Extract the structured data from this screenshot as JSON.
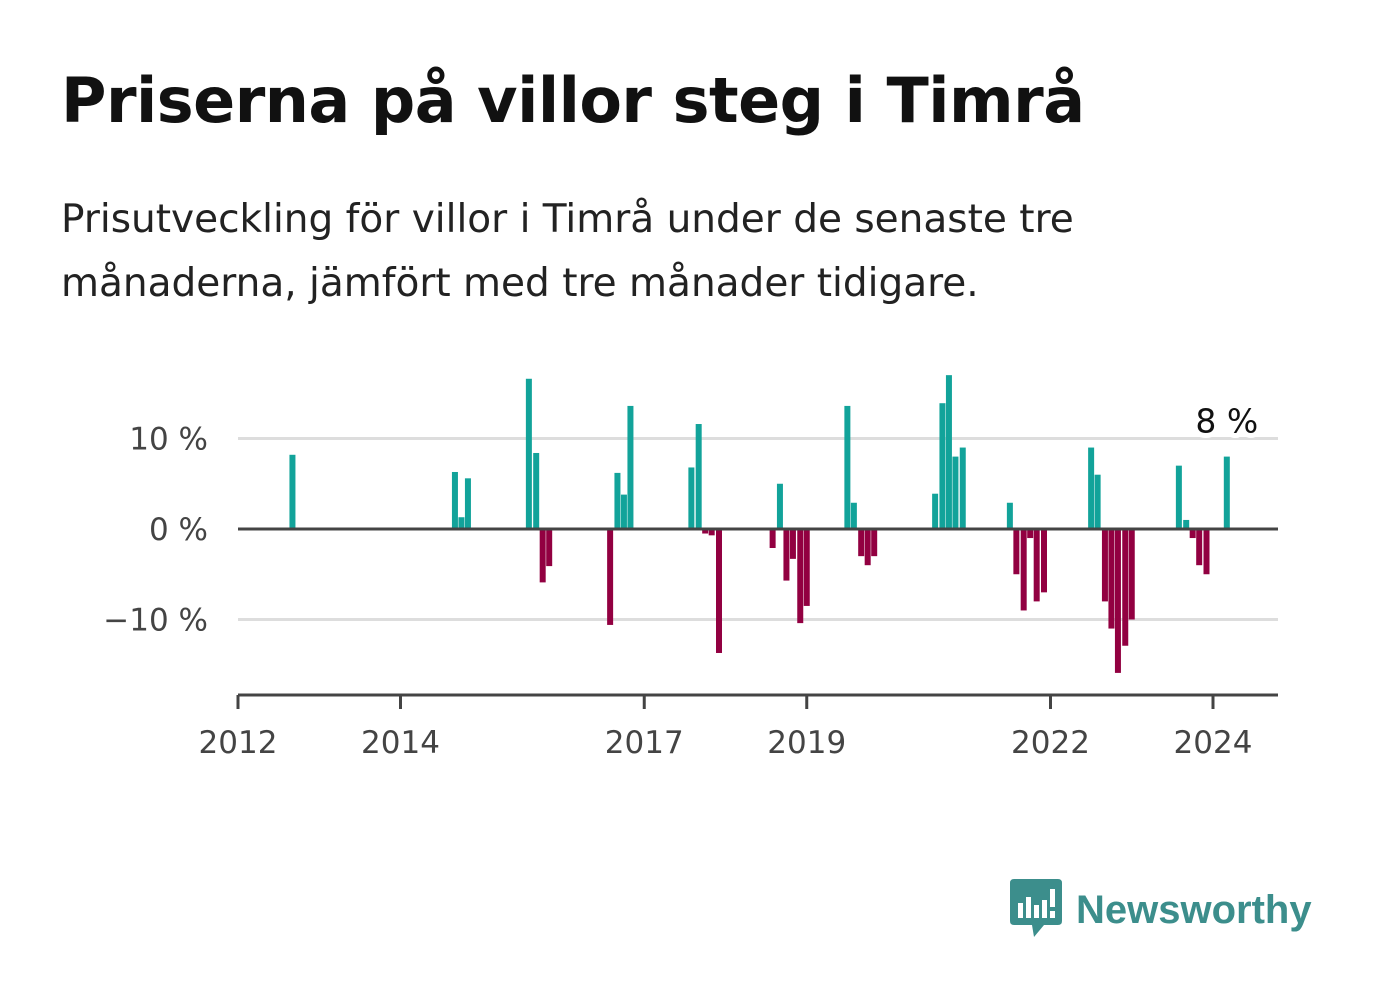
{
  "title": "Priserna på villor steg i Timrå",
  "subtitle": "Prisutveckling för villor i Timrå under de senaste tre månaderna, jämfört med tre månader tidigare.",
  "brand": {
    "name": "Newsworthy",
    "icon": "newsworthy-logo-icon"
  },
  "colors": {
    "positive": "#12a39a",
    "negative": "#920041",
    "grid": "#dddddd",
    "axis": "#444444"
  },
  "chart_data": {
    "type": "bar",
    "title": "Priserna på villor steg i Timrå",
    "subtitle": "Prisutveckling för villor i Timrå under de senaste tre månaderna, jämfört med tre månader tidigare.",
    "xlim": [
      2012.0,
      2024.8
    ],
    "ylim": [
      -18.5,
      18.5
    ],
    "x_ticks": [
      {
        "value": 2012,
        "label": "2012"
      },
      {
        "value": 2014,
        "label": "2014"
      },
      {
        "value": 2017,
        "label": "2017"
      },
      {
        "value": 2019,
        "label": "2019"
      },
      {
        "value": 2022,
        "label": "2022"
      },
      {
        "value": 2024,
        "label": "2024"
      }
    ],
    "y_ticks": [
      {
        "value": 10,
        "label": "10 %"
      },
      {
        "value": 0,
        "label": "0 %"
      },
      {
        "value": -10,
        "label": "−10 %"
      }
    ],
    "grid": true,
    "end_label": {
      "x": 2024.17,
      "value": 8,
      "text": "8 %"
    },
    "points": [
      {
        "x": 2012.67,
        "y": 8.2
      },
      {
        "x": 2014.67,
        "y": 6.3
      },
      {
        "x": 2014.75,
        "y": 1.3
      },
      {
        "x": 2014.83,
        "y": 5.6
      },
      {
        "x": 2015.58,
        "y": 16.6
      },
      {
        "x": 2015.67,
        "y": 8.4
      },
      {
        "x": 2015.75,
        "y": -5.9
      },
      {
        "x": 2015.83,
        "y": -4.1
      },
      {
        "x": 2016.58,
        "y": -10.6
      },
      {
        "x": 2016.67,
        "y": 6.2
      },
      {
        "x": 2016.75,
        "y": 3.8
      },
      {
        "x": 2016.83,
        "y": 13.6
      },
      {
        "x": 2017.58,
        "y": 6.8
      },
      {
        "x": 2017.67,
        "y": 11.6
      },
      {
        "x": 2017.75,
        "y": -0.5
      },
      {
        "x": 2017.83,
        "y": -0.7
      },
      {
        "x": 2017.92,
        "y": -13.7
      },
      {
        "x": 2018.58,
        "y": -2.1
      },
      {
        "x": 2018.67,
        "y": 5.0
      },
      {
        "x": 2018.75,
        "y": -5.7
      },
      {
        "x": 2018.83,
        "y": -3.3
      },
      {
        "x": 2018.92,
        "y": -10.4
      },
      {
        "x": 2019.0,
        "y": -8.5
      },
      {
        "x": 2019.5,
        "y": 13.6
      },
      {
        "x": 2019.58,
        "y": 2.9
      },
      {
        "x": 2019.67,
        "y": -3.0
      },
      {
        "x": 2019.75,
        "y": -4.0
      },
      {
        "x": 2019.83,
        "y": -3.0
      },
      {
        "x": 2020.58,
        "y": 3.9
      },
      {
        "x": 2020.67,
        "y": 13.9
      },
      {
        "x": 2020.75,
        "y": 17.0
      },
      {
        "x": 2020.83,
        "y": 8.0
      },
      {
        "x": 2020.92,
        "y": 9.0
      },
      {
        "x": 2021.5,
        "y": 2.9
      },
      {
        "x": 2021.58,
        "y": -5.0
      },
      {
        "x": 2021.67,
        "y": -9.0
      },
      {
        "x": 2021.75,
        "y": -1.0
      },
      {
        "x": 2021.83,
        "y": -8.0
      },
      {
        "x": 2021.92,
        "y": -7.0
      },
      {
        "x": 2022.5,
        "y": 9.0
      },
      {
        "x": 2022.58,
        "y": 6.0
      },
      {
        "x": 2022.67,
        "y": -8.0
      },
      {
        "x": 2022.75,
        "y": -11.0
      },
      {
        "x": 2022.83,
        "y": -15.9
      },
      {
        "x": 2022.92,
        "y": -12.9
      },
      {
        "x": 2023.0,
        "y": -10.0
      },
      {
        "x": 2023.58,
        "y": 7.0
      },
      {
        "x": 2023.67,
        "y": 1.0
      },
      {
        "x": 2023.75,
        "y": -1.0
      },
      {
        "x": 2023.83,
        "y": -4.0
      },
      {
        "x": 2023.92,
        "y": -5.0
      },
      {
        "x": 2024.17,
        "y": 8.0
      }
    ]
  }
}
